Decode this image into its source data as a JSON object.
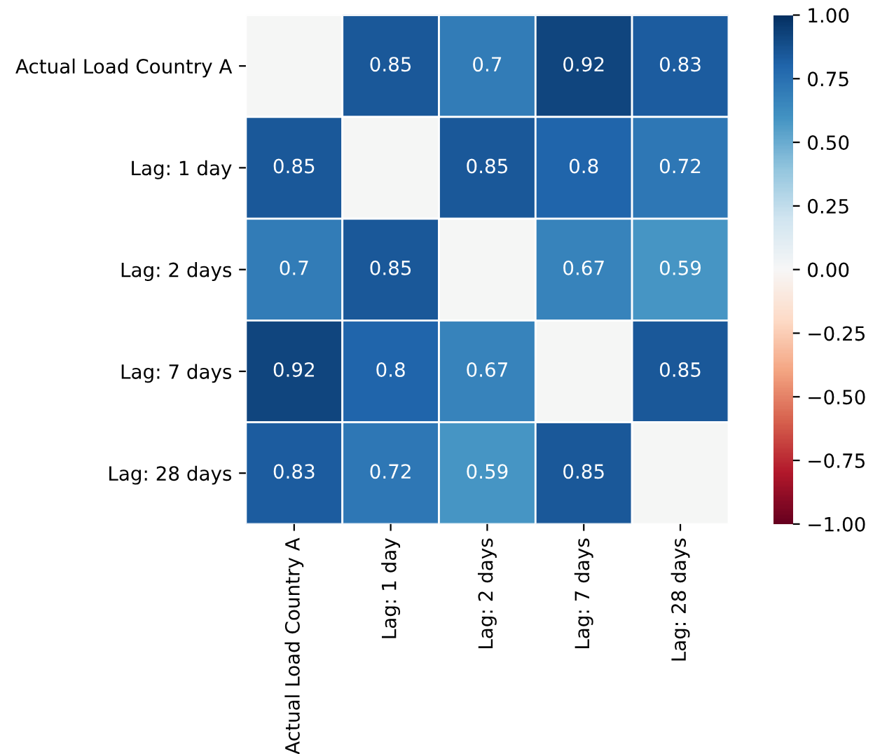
{
  "chart_data": {
    "type": "heatmap",
    "categories": [
      "Actual Load Country A",
      "Lag: 1 day",
      "Lag: 2 days",
      "Lag: 7 days",
      "Lag: 28 days"
    ],
    "y_categories": [
      "Actual Load Country A",
      "Lag: 1 day",
      "Lag: 2 days",
      "Lag: 7 days",
      "Lag: 28 days"
    ],
    "cells": [
      [
        null,
        0.85,
        0.7,
        0.92,
        0.83
      ],
      [
        0.85,
        null,
        0.85,
        0.8,
        0.72
      ],
      [
        0.7,
        0.85,
        null,
        0.67,
        0.59
      ],
      [
        0.92,
        0.8,
        0.67,
        null,
        0.85
      ],
      [
        0.83,
        0.72,
        0.59,
        0.85,
        null
      ]
    ],
    "data_labels": true,
    "clim": [
      -1,
      1
    ],
    "cticks": [
      {
        "value": -1,
        "label": "−1.00"
      },
      {
        "value": -0.75,
        "label": "−0.75"
      },
      {
        "value": -0.5,
        "label": "−0.50"
      },
      {
        "value": -0.25,
        "label": "−0.25"
      },
      {
        "value": 0,
        "label": "0.00"
      },
      {
        "value": 0.25,
        "label": "0.25"
      },
      {
        "value": 0.5,
        "label": "0.50"
      },
      {
        "value": 0.75,
        "label": "0.75"
      },
      {
        "value": 1,
        "label": "1.00"
      }
    ]
  }
}
